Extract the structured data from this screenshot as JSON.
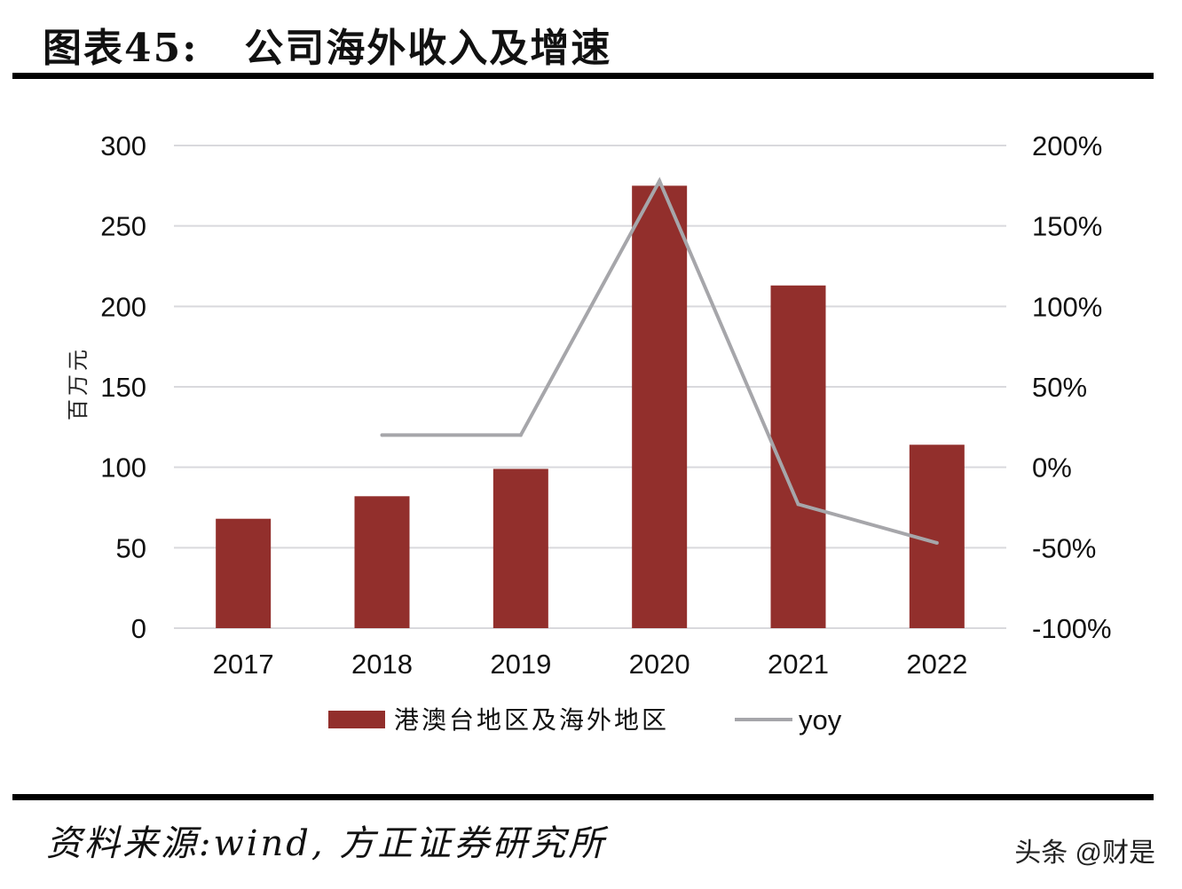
{
  "title": "图表45:   公司海外收入及增速",
  "source": "资料来源:wind, 方正证券研究所",
  "watermark": "头条 @财是",
  "chart_data": {
    "type": "bar+line",
    "title": "",
    "categories": [
      "2017",
      "2018",
      "2019",
      "2020",
      "2021",
      "2022"
    ],
    "ylabel": "百万元",
    "ylim": [
      0,
      300
    ],
    "yticks": [
      "0",
      "50",
      "100",
      "150",
      "200",
      "250",
      "300"
    ],
    "y2lim": [
      -100,
      200
    ],
    "y2ticks": [
      "-100%",
      "-50%",
      "0%",
      "50%",
      "100%",
      "150%",
      "200%"
    ],
    "grid": true,
    "legend_position": "bottom",
    "series": [
      {
        "name": "港澳台地区及海外地区",
        "type": "bar",
        "color": "#922f2c",
        "values": [
          68,
          82,
          99,
          275,
          213,
          114
        ]
      },
      {
        "name": "yoy",
        "type": "line",
        "axis": "right",
        "color": "#a6a6aa",
        "values": [
          null,
          20,
          20,
          178,
          -23,
          -47
        ]
      }
    ]
  }
}
